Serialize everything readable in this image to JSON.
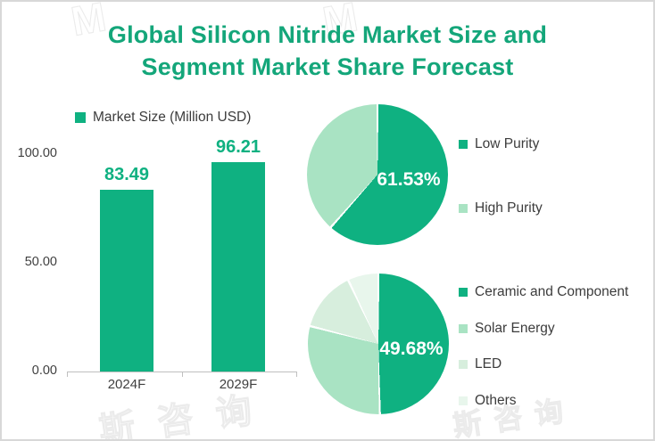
{
  "title": {
    "line1": "Global Silicon Nitride Market Size and",
    "line2": "Segment Market Share Forecast"
  },
  "colors": {
    "title_green": "#14A67A",
    "emerald": "#0FB181",
    "mint": "#A9E3C3",
    "pale_green": "#D7EEDD",
    "lightest_green": "#E8F6EC",
    "axis_text": "#404040",
    "axis_line": "#BFBFBF",
    "border": "#D8D8D8",
    "pie_label": "#FFFFFF"
  },
  "watermark": {
    "logo": "M",
    "text": "斯咨询"
  },
  "chart_data": [
    {
      "type": "bar",
      "legend": "Market Size (Million USD)",
      "categories": [
        "2024F",
        "2029F"
      ],
      "values": [
        83.49,
        96.21
      ],
      "value_labels": [
        "83.49",
        "96.21"
      ],
      "ylim": [
        0,
        100
      ],
      "yticks": [
        {
          "value": 100,
          "label": "100.00"
        },
        {
          "value": 50,
          "label": "50.00"
        },
        {
          "value": 0,
          "label": "0.00"
        }
      ],
      "bar_color": "#0FB181",
      "grid": false,
      "legend_position": "top-left"
    },
    {
      "type": "pie",
      "labels": [
        "Low Purity",
        "High Purity"
      ],
      "values": [
        61.53,
        38.47
      ],
      "colors": [
        "#0FB181",
        "#A9E3C3"
      ],
      "data_label": "61.53%",
      "legend_position": "right",
      "start_angle_deg": 0,
      "direction": "clockwise"
    },
    {
      "type": "pie",
      "labels": [
        "Ceramic and Component",
        "Solar Energy",
        "LED",
        "Others"
      ],
      "values": [
        49.68,
        29.4,
        13.9,
        7.02
      ],
      "colors": [
        "#0FB181",
        "#A9E3C3",
        "#D7EEDD",
        "#E8F6EC"
      ],
      "data_label": "49.68%",
      "legend_position": "right",
      "start_angle_deg": 0,
      "direction": "clockwise"
    }
  ]
}
